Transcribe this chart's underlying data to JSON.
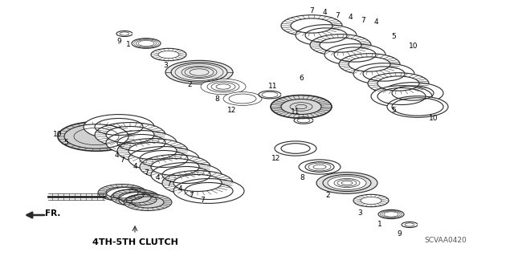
{
  "title": "4TH-5TH CLUTCH",
  "part_code": "SCVAA0420",
  "bg_color": "#ffffff",
  "line_color": "#2a2a2a",
  "fig_width": 6.4,
  "fig_height": 3.19,
  "dpi": 100
}
